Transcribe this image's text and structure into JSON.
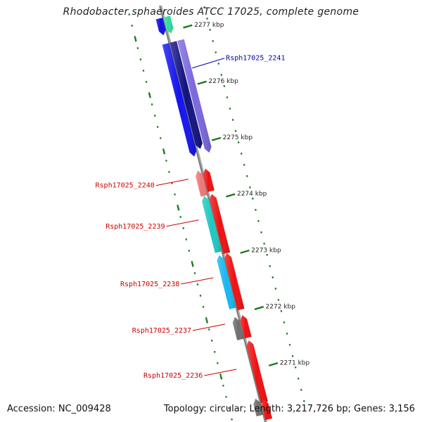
{
  "title": "Rhodobacter sphaeroides ATCC 17025, complete genome",
  "footer": {
    "accession": "Accession: NC_009428",
    "stats": "Topology: circular; Length: 3,217,726 bp; Genes: 3,156"
  },
  "colors": {
    "backbone": "#808080",
    "tick": "#1e7a1e",
    "label_red": "#cc0000",
    "label_blue": "#0000aa"
  },
  "ruler": [
    {
      "label": "2277 kbp",
      "kbp": 2277
    },
    {
      "label": "2276 kbp",
      "kbp": 2276
    },
    {
      "label": "2275 kbp",
      "kbp": 2275
    },
    {
      "label": "2274 kbp",
      "kbp": 2274
    },
    {
      "label": "2273 kbp",
      "kbp": 2273
    },
    {
      "label": "2272 kbp",
      "kbp": 2272
    },
    {
      "label": "2271 kbp",
      "kbp": 2271
    }
  ],
  "genes": [
    {
      "name": "green-gene",
      "label": "",
      "color": "#2fdc9a",
      "strand": "reverse",
      "start_kbp": 2277.25,
      "end_kbp": 2276.95,
      "track": 1
    },
    {
      "name": "blue-gene-top",
      "label": "",
      "color": "#1010e0",
      "strand": "reverse",
      "start_kbp": 2277.25,
      "end_kbp": 2276.95,
      "track": 2
    },
    {
      "name": "blue-gene-large",
      "label": "",
      "color": "#1414ee",
      "strand": "reverse",
      "start_kbp": 2276.8,
      "end_kbp": 2274.8,
      "track": 2
    },
    {
      "name": "navy-gene",
      "label": "",
      "color": "#131380",
      "strand": "reverse",
      "start_kbp": 2276.8,
      "end_kbp": 2274.9,
      "track": 1
    },
    {
      "name": "Rsph17025_2241",
      "label": "Rsph17025_2241",
      "label_color": "#0000aa",
      "color": "#7b68dd",
      "strand": "reverse",
      "start_kbp": 2276.8,
      "end_kbp": 2274.8,
      "track": 0
    },
    {
      "name": "red-gene-a",
      "label": "",
      "color": "#ee1111",
      "strand": "forward",
      "start_kbp": 2274.55,
      "end_kbp": 2274.15,
      "track": 1
    },
    {
      "name": "Rsph17025_2240",
      "label": "Rsph17025_2240",
      "label_color": "#cc0000",
      "color": "#ee7777",
      "strand": "forward",
      "start_kbp": 2274.55,
      "end_kbp": 2274.1,
      "track": 2
    },
    {
      "name": "red-gene-b",
      "label": "",
      "color": "#ee1111",
      "strand": "forward",
      "start_kbp": 2274.1,
      "end_kbp": 2273.05,
      "track": 1
    },
    {
      "name": "Rsph17025_2239",
      "label": "Rsph17025_2239",
      "label_color": "#cc0000",
      "color": "#20c8c0",
      "strand": "forward",
      "start_kbp": 2274.1,
      "end_kbp": 2273.1,
      "track": 2
    },
    {
      "name": "red-gene-c",
      "label": "",
      "color": "#ee1111",
      "strand": "forward",
      "start_kbp": 2273.05,
      "end_kbp": 2272.05,
      "track": 1
    },
    {
      "name": "Rsph17025_2238",
      "label": "Rsph17025_2238",
      "label_color": "#cc0000",
      "color": "#18b8f0",
      "strand": "forward",
      "start_kbp": 2273.05,
      "end_kbp": 2272.1,
      "track": 2
    },
    {
      "name": "red-gene-d",
      "label": "",
      "color": "#ee1111",
      "strand": "forward",
      "start_kbp": 2271.95,
      "end_kbp": 2271.55,
      "track": 1
    },
    {
      "name": "Rsph17025_2237",
      "label": "Rsph17025_2237",
      "label_color": "#cc0000",
      "color": "#6e6e6e",
      "strand": "forward",
      "start_kbp": 2271.95,
      "end_kbp": 2271.55,
      "track": 2
    },
    {
      "name": "Rsph17025_2236",
      "label": "Rsph17025_2236",
      "label_color": "#cc0000",
      "color": "#ee1111",
      "strand": "forward",
      "start_kbp": 2271.5,
      "end_kbp": 2270.4,
      "track": 1
    },
    {
      "name": "grey-gene-bottom",
      "label": "",
      "color": "#707070",
      "strand": "forward",
      "start_kbp": 2270.5,
      "end_kbp": 2270.2,
      "track": 2
    },
    {
      "name": "red-gene-bottom",
      "label": "",
      "color": "#ee1111",
      "strand": "forward",
      "start_kbp": 2270.45,
      "end_kbp": 2270.1,
      "track": 1
    }
  ]
}
